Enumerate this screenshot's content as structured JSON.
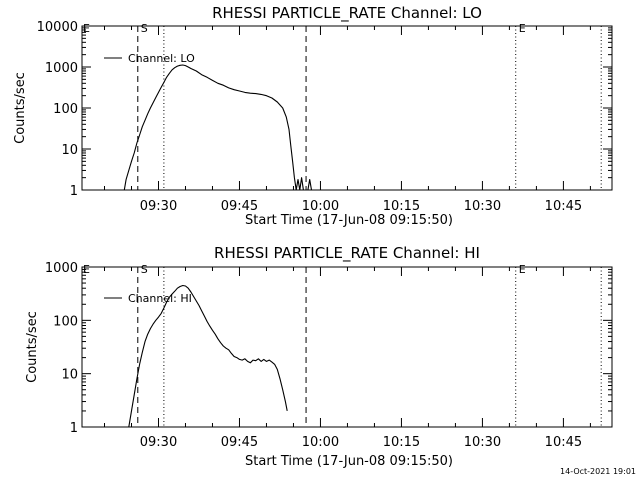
{
  "footer": {
    "timestamp": "14-Oct-2021 19:01"
  },
  "chart_data": [
    {
      "type": "line",
      "title": "RHESSI PARTICLE_RATE Channel: LO",
      "xlabel": "Start Time (17-Jun-08 09:15:50)",
      "ylabel": "Counts/sec",
      "yscale": "log",
      "ylim": [
        1,
        10000
      ],
      "xlim": [
        "09:15:50",
        "10:54:00"
      ],
      "x_ticks": [
        "09:30",
        "09:45",
        "10:00",
        "10:15",
        "10:30",
        "10:45"
      ],
      "y_ticks": [
        "1",
        "10",
        "100",
        "1000",
        "10000"
      ],
      "legend": {
        "entries": [
          "Channel: LO"
        ],
        "placement": "top-left"
      },
      "markers": [
        {
          "label": "S",
          "time": "09:26:10",
          "style": "dashed"
        },
        {
          "label": "",
          "time": "09:31:00",
          "style": "dotted"
        },
        {
          "label": "",
          "time": "09:57:20",
          "style": "dashed"
        },
        {
          "label": "E",
          "time": "10:36:10",
          "style": "dotted"
        },
        {
          "label": "",
          "time": "10:52:00",
          "style": "dotted"
        }
      ],
      "edge_labels": {
        "left": "E"
      },
      "series": [
        {
          "name": "Channel: LO",
          "points": [
            [
              "09:23:40",
              1
            ],
            [
              "09:24:00",
              1.8
            ],
            [
              "09:24:30",
              3
            ],
            [
              "09:25:00",
              5
            ],
            [
              "09:25:30",
              8
            ],
            [
              "09:26:00",
              14
            ],
            [
              "09:26:30",
              22
            ],
            [
              "09:27:00",
              35
            ],
            [
              "09:27:30",
              50
            ],
            [
              "09:28:00",
              72
            ],
            [
              "09:28:30",
              100
            ],
            [
              "09:29:00",
              135
            ],
            [
              "09:29:30",
              180
            ],
            [
              "09:30:00",
              240
            ],
            [
              "09:30:30",
              320
            ],
            [
              "09:31:00",
              420
            ],
            [
              "09:31:30",
              560
            ],
            [
              "09:32:00",
              700
            ],
            [
              "09:32:30",
              850
            ],
            [
              "09:33:00",
              960
            ],
            [
              "09:33:30",
              1050
            ],
            [
              "09:34:00",
              1100
            ],
            [
              "09:34:30",
              1120
            ],
            [
              "09:35:00",
              1080
            ],
            [
              "09:35:30",
              1000
            ],
            [
              "09:36:00",
              920
            ],
            [
              "09:37:00",
              800
            ],
            [
              "09:38:00",
              650
            ],
            [
              "09:39:00",
              560
            ],
            [
              "09:40:00",
              470
            ],
            [
              "09:41:00",
              400
            ],
            [
              "09:42:00",
              360
            ],
            [
              "09:43:00",
              310
            ],
            [
              "09:44:00",
              280
            ],
            [
              "09:45:00",
              260
            ],
            [
              "09:46:00",
              240
            ],
            [
              "09:47:00",
              230
            ],
            [
              "09:48:00",
              225
            ],
            [
              "09:49:00",
              215
            ],
            [
              "09:50:00",
              200
            ],
            [
              "09:51:00",
              175
            ],
            [
              "09:52:00",
              140
            ],
            [
              "09:53:00",
              100
            ],
            [
              "09:53:40",
              60
            ],
            [
              "09:54:10",
              30
            ],
            [
              "09:54:30",
              12
            ],
            [
              "09:54:50",
              5
            ],
            [
              "09:55:10",
              2
            ],
            [
              "09:55:30",
              1
            ],
            [
              "09:55:50",
              1.8
            ],
            [
              "09:56:10",
              1
            ],
            [
              "09:56:30",
              2
            ],
            [
              "09:56:50",
              1
            ],
            [
              "09:57:40",
              1
            ],
            [
              "09:58:00",
              1.8
            ],
            [
              "09:58:20",
              1
            ]
          ]
        }
      ]
    },
    {
      "type": "line",
      "title": "RHESSI PARTICLE_RATE Channel: HI",
      "xlabel": "Start Time (17-Jun-08 09:15:50)",
      "ylabel": "Counts/sec",
      "yscale": "log",
      "ylim": [
        1,
        1000
      ],
      "xlim": [
        "09:15:50",
        "10:54:00"
      ],
      "x_ticks": [
        "09:30",
        "09:45",
        "10:00",
        "10:15",
        "10:30",
        "10:45"
      ],
      "y_ticks": [
        "1",
        "10",
        "100",
        "1000"
      ],
      "legend": {
        "entries": [
          "Channel: HI"
        ],
        "placement": "top-left"
      },
      "markers": [
        {
          "label": "S",
          "time": "09:26:10",
          "style": "dashed"
        },
        {
          "label": "",
          "time": "09:31:00",
          "style": "dotted"
        },
        {
          "label": "",
          "time": "09:57:20",
          "style": "dashed"
        },
        {
          "label": "E",
          "time": "10:36:10",
          "style": "dotted"
        },
        {
          "label": "",
          "time": "10:52:00",
          "style": "dotted"
        }
      ],
      "edge_labels": {
        "left": "E"
      },
      "series": [
        {
          "name": "Channel: HI",
          "points": [
            [
              "09:24:30",
              1
            ],
            [
              "09:25:00",
              2
            ],
            [
              "09:25:30",
              4
            ],
            [
              "09:26:00",
              8
            ],
            [
              "09:26:30",
              15
            ],
            [
              "09:27:00",
              25
            ],
            [
              "09:27:30",
              40
            ],
            [
              "09:28:00",
              55
            ],
            [
              "09:28:30",
              70
            ],
            [
              "09:29:00",
              85
            ],
            [
              "09:29:30",
              100
            ],
            [
              "09:30:00",
              115
            ],
            [
              "09:30:30",
              135
            ],
            [
              "09:31:00",
              170
            ],
            [
              "09:31:30",
              220
            ],
            [
              "09:32:00",
              270
            ],
            [
              "09:32:30",
              310
            ],
            [
              "09:33:00",
              350
            ],
            [
              "09:33:30",
              400
            ],
            [
              "09:34:00",
              430
            ],
            [
              "09:34:30",
              450
            ],
            [
              "09:35:00",
              440
            ],
            [
              "09:35:30",
              400
            ],
            [
              "09:36:00",
              340
            ],
            [
              "09:36:30",
              280
            ],
            [
              "09:37:00",
              230
            ],
            [
              "09:37:30",
              190
            ],
            [
              "09:38:00",
              150
            ],
            [
              "09:38:30",
              120
            ],
            [
              "09:39:00",
              95
            ],
            [
              "09:39:30",
              78
            ],
            [
              "09:40:00",
              65
            ],
            [
              "09:40:30",
              55
            ],
            [
              "09:41:00",
              45
            ],
            [
              "09:41:30",
              38
            ],
            [
              "09:42:00",
              33
            ],
            [
              "09:42:30",
              30
            ],
            [
              "09:43:00",
              28
            ],
            [
              "09:43:30",
              24
            ],
            [
              "09:44:00",
              21
            ],
            [
              "09:44:30",
              20
            ],
            [
              "09:45:00",
              18.5
            ],
            [
              "09:45:30",
              18
            ],
            [
              "09:46:00",
              19
            ],
            [
              "09:46:30",
              17
            ],
            [
              "09:47:00",
              16
            ],
            [
              "09:47:30",
              18
            ],
            [
              "09:48:00",
              17.5
            ],
            [
              "09:48:30",
              19
            ],
            [
              "09:49:00",
              17
            ],
            [
              "09:49:30",
              18.5
            ],
            [
              "09:50:00",
              17
            ],
            [
              "09:50:30",
              18
            ],
            [
              "09:51:00",
              16.5
            ],
            [
              "09:51:30",
              15
            ],
            [
              "09:52:00",
              12
            ],
            [
              "09:52:30",
              8
            ],
            [
              "09:53:00",
              5
            ],
            [
              "09:53:30",
              3
            ],
            [
              "09:53:50",
              2
            ]
          ]
        }
      ]
    }
  ]
}
